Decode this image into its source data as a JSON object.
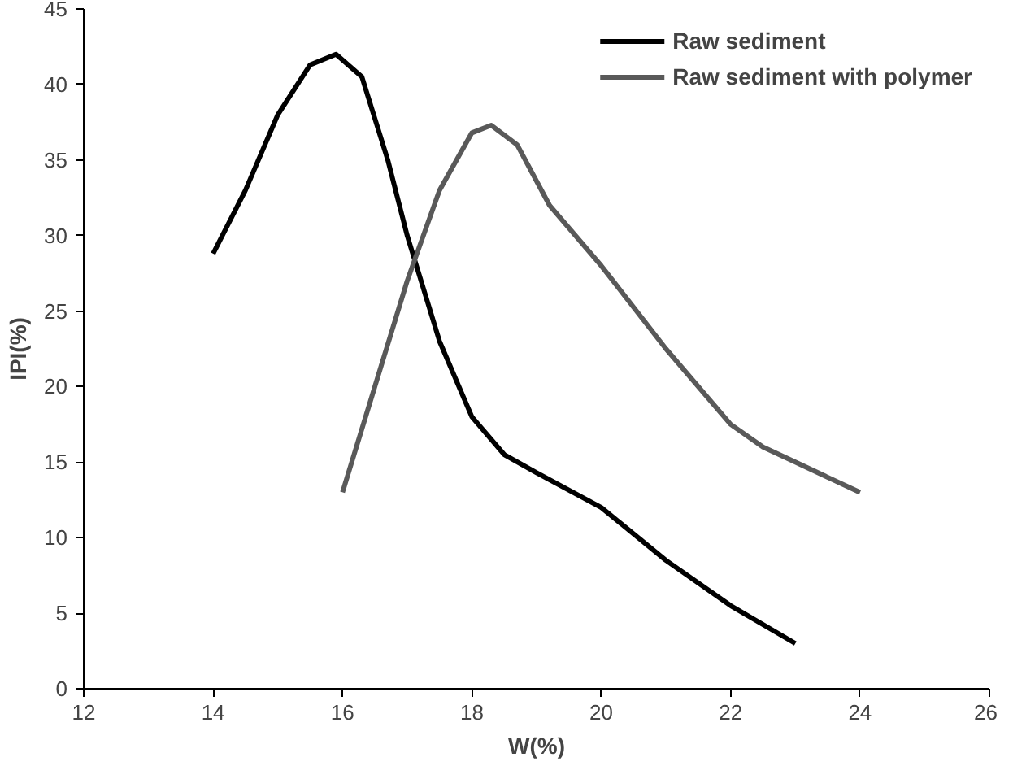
{
  "chart_data": {
    "type": "line",
    "xlabel": "W(%)",
    "ylabel": "IPI(%)",
    "xlim": [
      12,
      26
    ],
    "xticks": [
      12,
      14,
      16,
      18,
      20,
      22,
      24,
      26
    ],
    "ylim": [
      0,
      45
    ],
    "yticks": [
      0,
      5,
      10,
      15,
      20,
      25,
      30,
      35,
      40,
      45
    ],
    "grid": false,
    "legend": "top right",
    "marker": "none",
    "line_style": "solid",
    "series": [
      {
        "name": "Raw sediment",
        "color": "#000000",
        "x": [
          14,
          14.5,
          15,
          15.5,
          15.9,
          16.3,
          16.7,
          17,
          17.5,
          18,
          18.5,
          19,
          20,
          21,
          22,
          23
        ],
        "values": [
          28.8,
          33,
          38,
          41.3,
          42,
          40.5,
          35,
          30,
          23,
          18,
          15.5,
          14.3,
          12,
          8.5,
          5.5,
          3
        ]
      },
      {
        "name": "Raw sediment with polymer",
        "color": "#595959",
        "x": [
          16,
          16.5,
          17,
          17.5,
          18,
          18.3,
          18.7,
          19.2,
          20,
          21,
          22,
          22.5,
          23,
          24
        ],
        "values": [
          13,
          20,
          27,
          33,
          36.8,
          37.3,
          36,
          32,
          28,
          22.5,
          17.5,
          16,
          15,
          13
        ]
      }
    ]
  }
}
